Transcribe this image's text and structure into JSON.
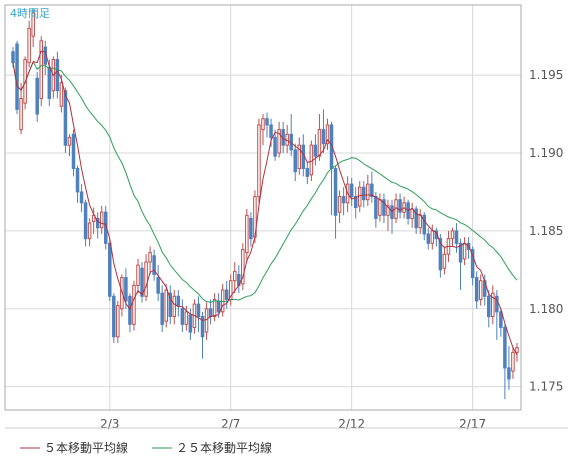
{
  "timeframe_label": "4時間足",
  "colors": {
    "up": "#c0504d",
    "down": "#4f81bd",
    "ma5": "#b03040",
    "ma25": "#2e9e5a",
    "grid": "#d8d8d8",
    "frame": "#aaaaaa"
  },
  "chart_data": {
    "type": "candlestick",
    "title": "",
    "grid": true,
    "legend_placement": "bottom-left",
    "ylim": [
      1.1735,
      1.1995
    ],
    "y_ticks": [
      "1.195",
      "1.190",
      "1.185",
      "1.180",
      "1.175"
    ],
    "y_tick_values": [
      1.195,
      1.19,
      1.185,
      1.18,
      1.175
    ],
    "x_ticks": [
      {
        "label": "2/3",
        "index": 24
      },
      {
        "label": "2/7",
        "index": 54
      },
      {
        "label": "2/12",
        "index": 84
      },
      {
        "label": "2/17",
        "index": 114
      }
    ],
    "candles": [
      [
        1.1965,
        1.1958,
        1.1955,
        1.1968
      ],
      [
        1.197,
        1.1928,
        1.1925,
        1.1972
      ],
      [
        1.1915,
        1.1935,
        1.1912,
        1.1945
      ],
      [
        1.1932,
        1.196,
        1.1928,
        1.1962
      ],
      [
        1.1958,
        1.198,
        1.1955,
        1.1985
      ],
      [
        1.1975,
        1.199,
        1.1968,
        1.1993
      ],
      [
        1.1948,
        1.1925,
        1.192,
        1.1952
      ],
      [
        1.1935,
        1.1972,
        1.193,
        1.1975
      ],
      [
        1.1968,
        1.1957,
        1.195,
        1.1972
      ],
      [
        1.1955,
        1.1935,
        1.193,
        1.196
      ],
      [
        1.194,
        1.196,
        1.1935,
        1.1962
      ],
      [
        1.196,
        1.194,
        1.1935,
        1.1965
      ],
      [
        1.193,
        1.1945,
        1.1926,
        1.195
      ],
      [
        1.194,
        1.1905,
        1.19,
        1.1942
      ],
      [
        1.1905,
        1.191,
        1.1898,
        1.1912
      ],
      [
        1.1912,
        1.189,
        1.1885,
        1.1915
      ],
      [
        1.189,
        1.1875,
        1.1868,
        1.1892
      ],
      [
        1.1875,
        1.1868,
        1.1862,
        1.188
      ],
      [
        1.1868,
        1.1845,
        1.184,
        1.187
      ],
      [
        1.1845,
        1.1855,
        1.184,
        1.1858
      ],
      [
        1.1856,
        1.186,
        1.1848,
        1.1865
      ],
      [
        1.1858,
        1.1852,
        1.1845,
        1.1862
      ],
      [
        1.1852,
        1.1862,
        1.1848,
        1.1866
      ],
      [
        1.1862,
        1.1842,
        1.1838,
        1.1866
      ],
      [
        1.1842,
        1.1808,
        1.1805,
        1.1845
      ],
      [
        1.1808,
        1.1782,
        1.1778,
        1.181
      ],
      [
        1.1782,
        1.1802,
        1.1778,
        1.1805
      ],
      [
        1.18,
        1.182,
        1.1795,
        1.1822
      ],
      [
        1.182,
        1.1805,
        1.18,
        1.1826
      ],
      [
        1.1808,
        1.179,
        1.1785,
        1.181
      ],
      [
        1.179,
        1.1815,
        1.1786,
        1.1818
      ],
      [
        1.1815,
        1.1828,
        1.181,
        1.1832
      ],
      [
        1.1826,
        1.1808,
        1.1804,
        1.183
      ],
      [
        1.1808,
        1.183,
        1.1805,
        1.1835
      ],
      [
        1.183,
        1.1836,
        1.1822,
        1.184
      ],
      [
        1.1834,
        1.1822,
        1.1818,
        1.1838
      ],
      [
        1.182,
        1.181,
        1.1805,
        1.1828
      ],
      [
        1.181,
        1.179,
        1.1785,
        1.1815
      ],
      [
        1.1792,
        1.1812,
        1.1788,
        1.1816
      ],
      [
        1.181,
        1.1795,
        1.179,
        1.1815
      ],
      [
        1.1795,
        1.1808,
        1.179,
        1.1812
      ],
      [
        1.1808,
        1.1802,
        1.1795,
        1.1812
      ],
      [
        1.18,
        1.179,
        1.1785,
        1.1806
      ],
      [
        1.179,
        1.1798,
        1.1786,
        1.1802
      ],
      [
        1.1796,
        1.1785,
        1.178,
        1.18
      ],
      [
        1.1788,
        1.1803,
        1.1784,
        1.1806
      ],
      [
        1.1803,
        1.1795,
        1.1785,
        1.1808
      ],
      [
        1.1795,
        1.1782,
        1.1768,
        1.1798
      ],
      [
        1.1785,
        1.18,
        1.178,
        1.1804
      ],
      [
        1.18,
        1.1795,
        1.179,
        1.1806
      ],
      [
        1.1795,
        1.1806,
        1.1792,
        1.181
      ],
      [
        1.1805,
        1.1798,
        1.1794,
        1.181
      ],
      [
        1.1798,
        1.1812,
        1.1795,
        1.1816
      ],
      [
        1.1812,
        1.1806,
        1.18,
        1.1818
      ],
      [
        1.1806,
        1.1818,
        1.1802,
        1.1822
      ],
      [
        1.1818,
        1.1824,
        1.181,
        1.183
      ],
      [
        1.1822,
        1.1815,
        1.181,
        1.1828
      ],
      [
        1.1816,
        1.1838,
        1.1812,
        1.1842
      ],
      [
        1.1836,
        1.186,
        1.183,
        1.1864
      ],
      [
        1.1858,
        1.1845,
        1.184,
        1.1862
      ],
      [
        1.1846,
        1.1872,
        1.1842,
        1.1876
      ],
      [
        1.1872,
        1.1918,
        1.1868,
        1.1922
      ],
      [
        1.1915,
        1.1922,
        1.1905,
        1.1925
      ],
      [
        1.1922,
        1.1918,
        1.191,
        1.1926
      ],
      [
        1.1918,
        1.191,
        1.1904,
        1.1922
      ],
      [
        1.191,
        1.1898,
        1.1895,
        1.1915
      ],
      [
        1.19,
        1.1915,
        1.1897,
        1.192
      ],
      [
        1.1915,
        1.1905,
        1.19,
        1.192
      ],
      [
        1.1905,
        1.1912,
        1.19,
        1.1918
      ],
      [
        1.1912,
        1.1902,
        1.1898,
        1.1925
      ],
      [
        1.1902,
        1.1888,
        1.1882,
        1.1906
      ],
      [
        1.189,
        1.1905,
        1.1886,
        1.191
      ],
      [
        1.1905,
        1.189,
        1.1885,
        1.1912
      ],
      [
        1.189,
        1.1885,
        1.188,
        1.1894
      ],
      [
        1.1886,
        1.1905,
        1.1882,
        1.1908
      ],
      [
        1.1905,
        1.1898,
        1.1892,
        1.1912
      ],
      [
        1.1898,
        1.1915,
        1.1895,
        1.1925
      ],
      [
        1.1915,
        1.1906,
        1.19,
        1.1928
      ],
      [
        1.1906,
        1.1918,
        1.1902,
        1.1922
      ],
      [
        1.1918,
        1.189,
        1.186,
        1.192
      ],
      [
        1.189,
        1.186,
        1.1845,
        1.1892
      ],
      [
        1.1862,
        1.1872,
        1.1855,
        1.1876
      ],
      [
        1.1872,
        1.1868,
        1.186,
        1.1878
      ],
      [
        1.1868,
        1.188,
        1.1862,
        1.1885
      ],
      [
        1.188,
        1.1872,
        1.1866,
        1.1884
      ],
      [
        1.1872,
        1.1865,
        1.1858,
        1.1878
      ],
      [
        1.1866,
        1.1878,
        1.1862,
        1.1882
      ],
      [
        1.1878,
        1.187,
        1.1865,
        1.1882
      ],
      [
        1.187,
        1.188,
        1.1866,
        1.1886
      ],
      [
        1.188,
        1.1872,
        1.1868,
        1.1888
      ],
      [
        1.1872,
        1.1858,
        1.1852,
        1.1875
      ],
      [
        1.186,
        1.187,
        1.1856,
        1.1874
      ],
      [
        1.187,
        1.186,
        1.1855,
        1.1874
      ],
      [
        1.186,
        1.1866,
        1.185,
        1.187
      ],
      [
        1.1866,
        1.1858,
        1.1848,
        1.187
      ],
      [
        1.1858,
        1.187,
        1.1855,
        1.1874
      ],
      [
        1.187,
        1.1862,
        1.1858,
        1.1874
      ],
      [
        1.1862,
        1.1868,
        1.1858,
        1.1872
      ],
      [
        1.1868,
        1.1858,
        1.1854,
        1.187
      ],
      [
        1.1858,
        1.1864,
        1.1852,
        1.1868
      ],
      [
        1.1864,
        1.1852,
        1.1848,
        1.1866
      ],
      [
        1.1852,
        1.186,
        1.1848,
        1.1864
      ],
      [
        1.186,
        1.1848,
        1.1844,
        1.1862
      ],
      [
        1.1848,
        1.1842,
        1.1838,
        1.1852
      ],
      [
        1.1842,
        1.185,
        1.1838,
        1.1854
      ],
      [
        1.185,
        1.1845,
        1.184,
        1.1852
      ],
      [
        1.1845,
        1.1825,
        1.182,
        1.1848
      ],
      [
        1.1826,
        1.1835,
        1.1822,
        1.184
      ],
      [
        1.1835,
        1.1845,
        1.183,
        1.185
      ],
      [
        1.1845,
        1.185,
        1.184,
        1.1852
      ],
      [
        1.185,
        1.1842,
        1.1836,
        1.1855
      ],
      [
        1.1842,
        1.183,
        1.1812,
        1.1845
      ],
      [
        1.1832,
        1.1842,
        1.1828,
        1.1846
      ],
      [
        1.1842,
        1.1838,
        1.1832,
        1.1846
      ],
      [
        1.1838,
        1.182,
        1.1815,
        1.184
      ],
      [
        1.182,
        1.1805,
        1.18,
        1.1824
      ],
      [
        1.1806,
        1.1818,
        1.1802,
        1.1822
      ],
      [
        1.1818,
        1.1808,
        1.1802,
        1.1822
      ],
      [
        1.1808,
        1.1795,
        1.1788,
        1.1812
      ],
      [
        1.1795,
        1.181,
        1.179,
        1.1815
      ],
      [
        1.1808,
        1.1798,
        1.178,
        1.1812
      ],
      [
        1.1798,
        1.1788,
        1.1782,
        1.18
      ],
      [
        1.1788,
        1.1762,
        1.1742,
        1.179
      ],
      [
        1.1762,
        1.1755,
        1.1748,
        1.1776
      ],
      [
        1.176,
        1.1772,
        1.1755,
        1.1776
      ],
      [
        1.1772,
        1.1775,
        1.1766,
        1.1778
      ]
    ],
    "series": [
      {
        "name": "５本移動平均線",
        "legend_label": "５本移動平均線"
      },
      {
        "name": "２５本移動平均線",
        "legend_label": "２５本移動平均線"
      }
    ]
  }
}
